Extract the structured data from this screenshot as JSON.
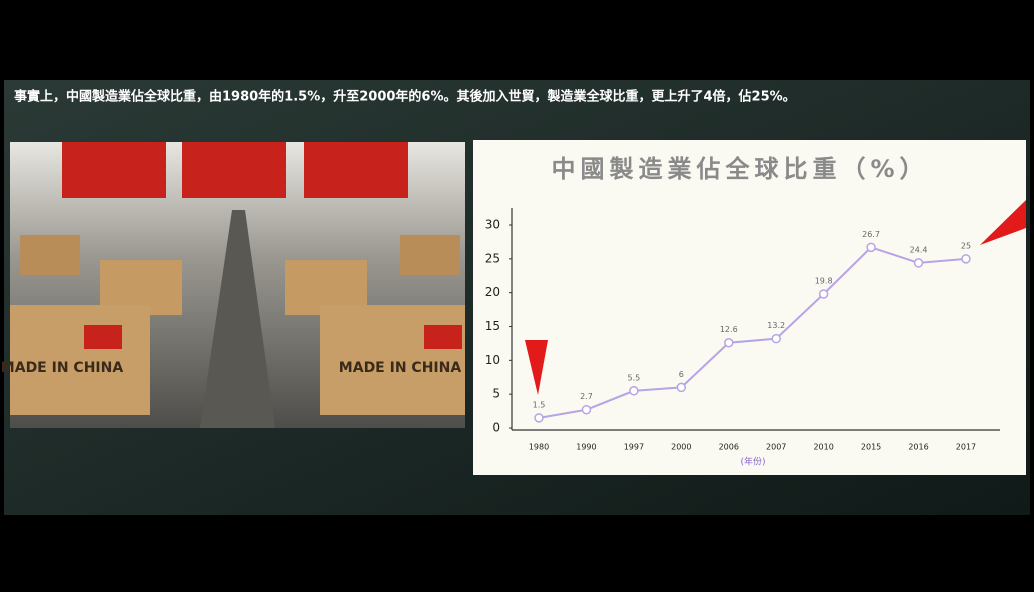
{
  "caption": "事實上，中國製造業佔全球比重，由1980年的1.5%，升至2000年的6%。其後加入世貿，製造業全球比重，更上升了4倍，佔25%。",
  "photo": {
    "box_text": "MADE IN CHINA"
  },
  "chart_data": {
    "type": "line",
    "title": "中國製造業佔全球比重（%）",
    "x_label": "(年份)",
    "categories": [
      "1980",
      "1990",
      "1997",
      "2000",
      "2006",
      "2007",
      "2010",
      "2015",
      "2016",
      "2017"
    ],
    "values": [
      1.5,
      2.7,
      5.5,
      6,
      12.6,
      13.2,
      19.8,
      26.7,
      24.4,
      25
    ],
    "color": "#b7a3e6",
    "ylim": [
      0,
      30
    ],
    "yticks": [
      0,
      5,
      10,
      15,
      20,
      25,
      30
    ],
    "grid": false
  }
}
